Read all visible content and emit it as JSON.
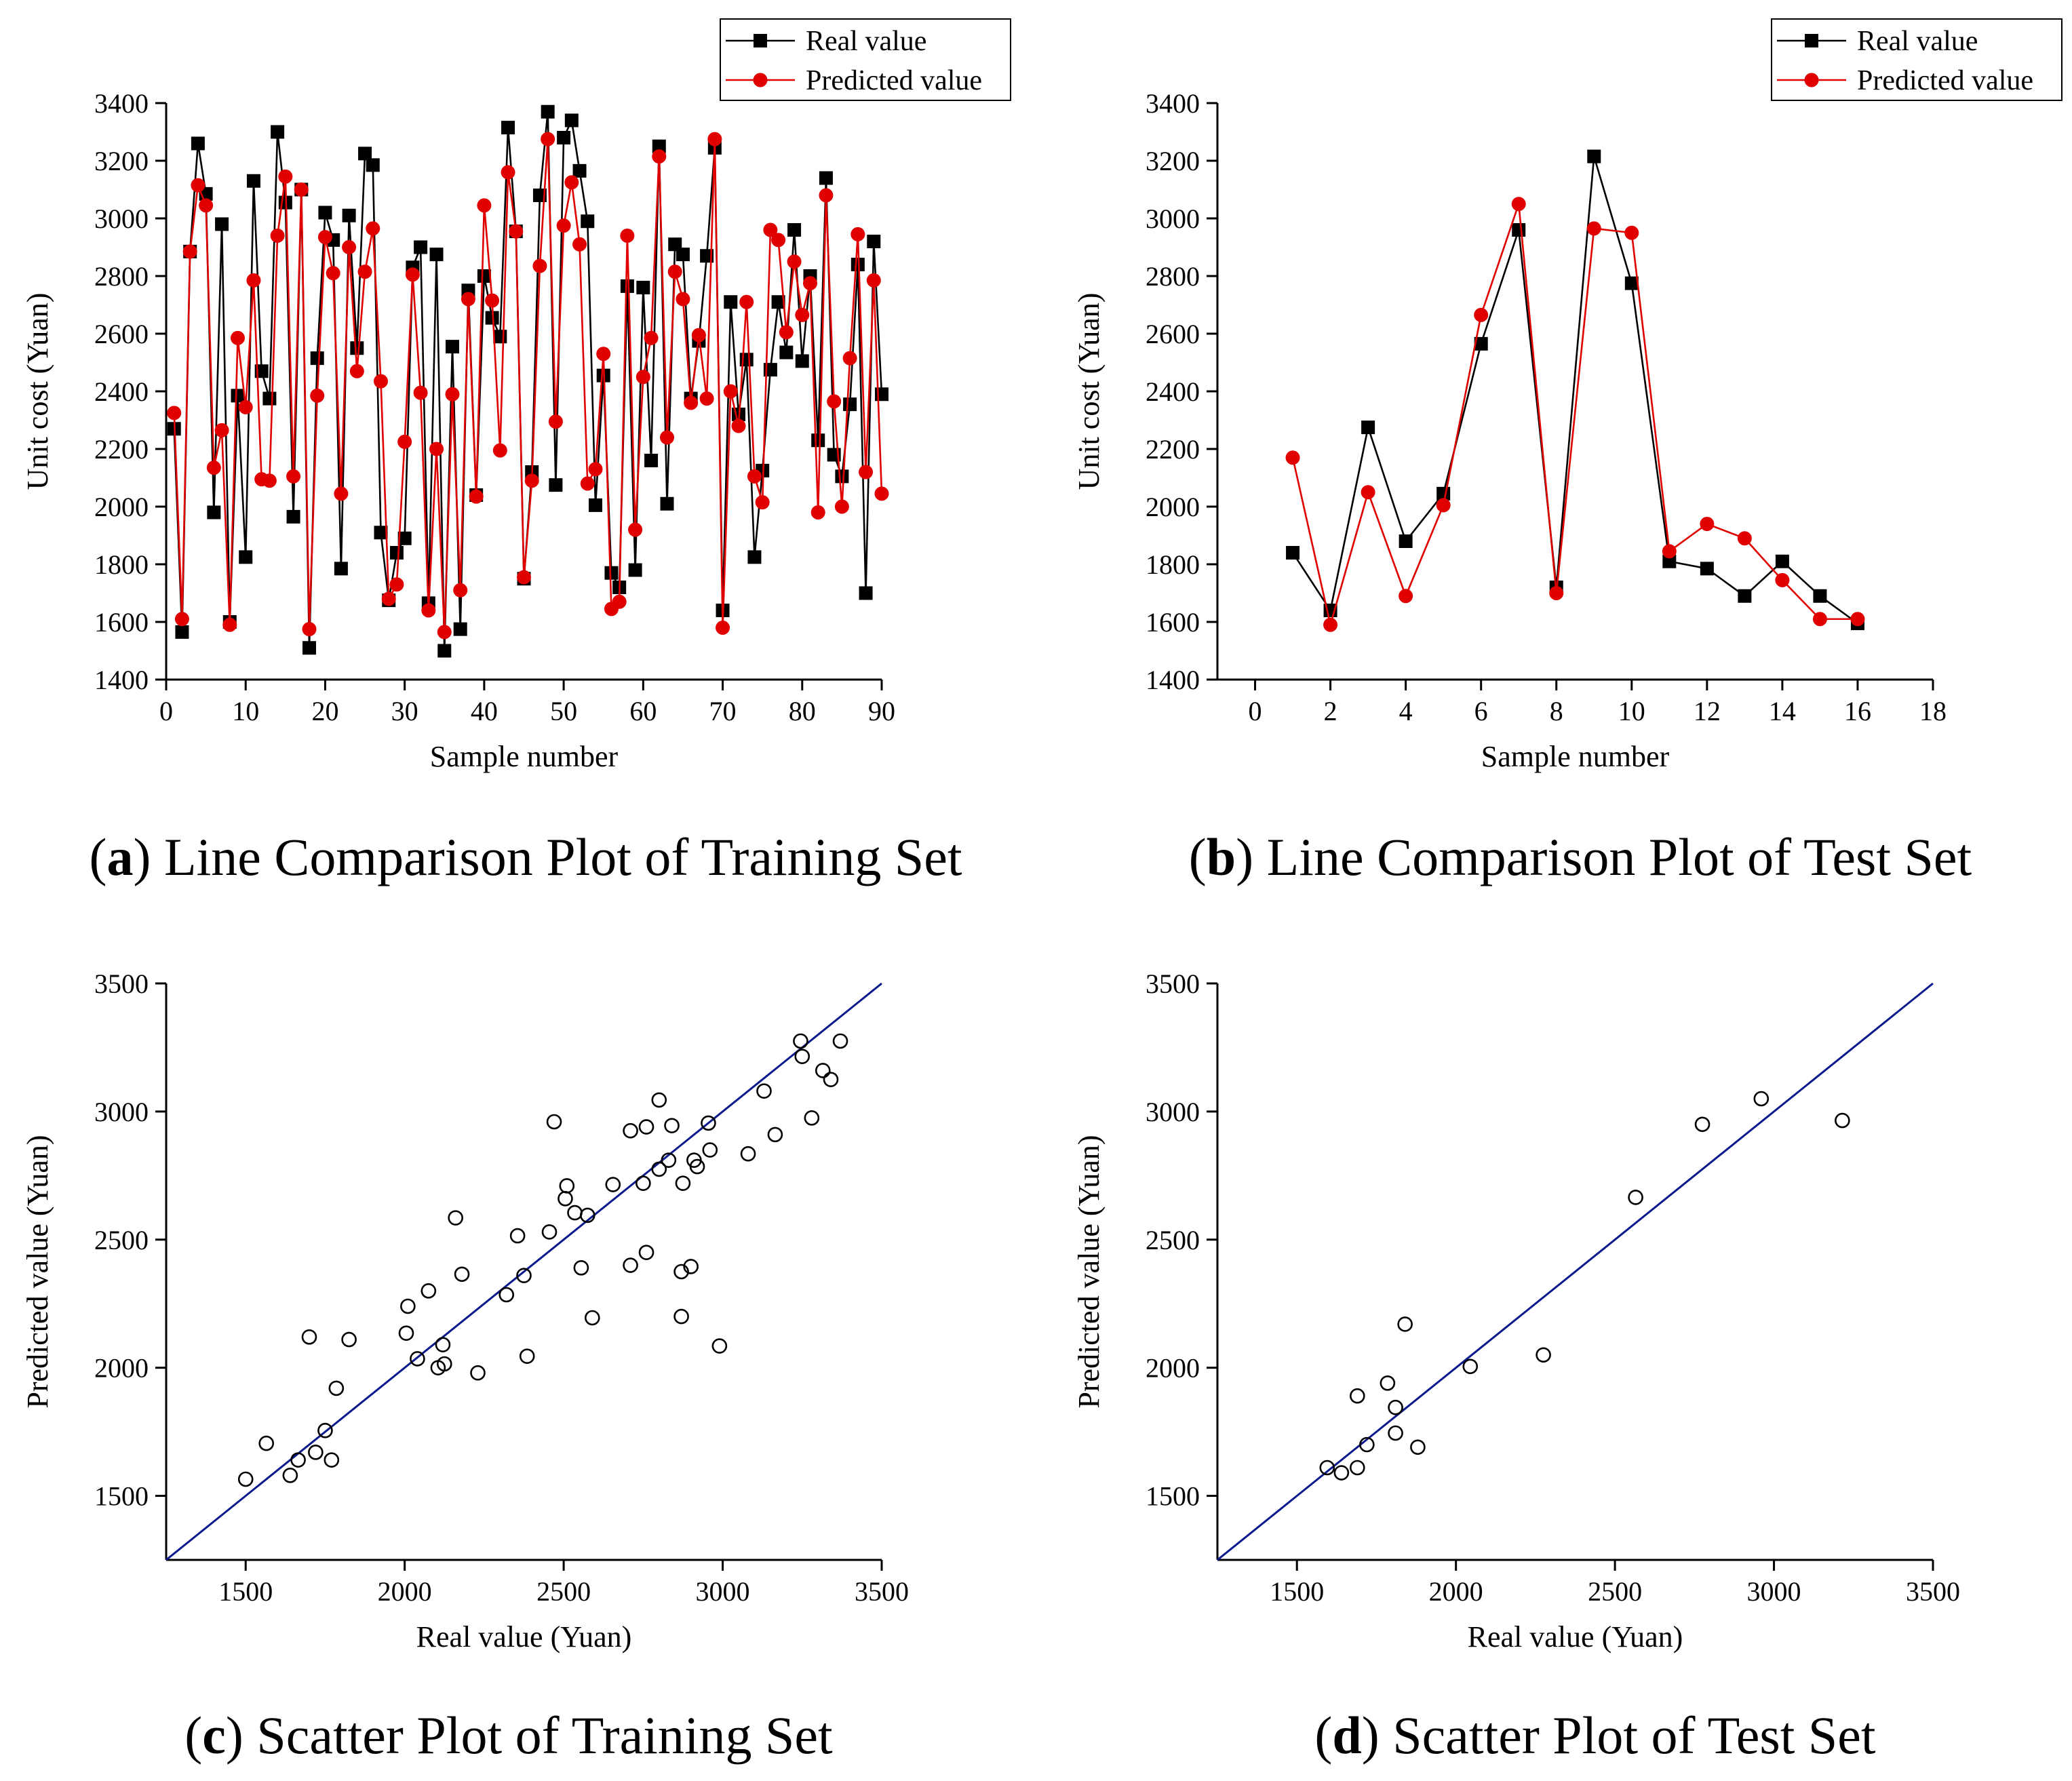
{
  "chart_data": [
    {
      "id": "a",
      "type": "line",
      "caption_letter": "a",
      "caption_text": "Line Comparison Plot of Training Set",
      "xlabel": "Sample number",
      "ylabel": "Unit cost (Yuan)",
      "xlim": [
        0,
        90
      ],
      "ylim": [
        1400,
        3400
      ],
      "xticks": [
        0,
        10,
        20,
        30,
        40,
        50,
        60,
        70,
        80,
        90
      ],
      "yticks": [
        1400,
        1600,
        1800,
        2000,
        2200,
        2400,
        2600,
        2800,
        3000,
        3200,
        3400
      ],
      "legend": [
        "Real value",
        "Predicted value"
      ],
      "legend_position": "top-right",
      "series": [
        {
          "name": "Real value",
          "color": "#000000",
          "marker": "square",
          "x": [
            1,
            2,
            3,
            4,
            5,
            6,
            7,
            8,
            9,
            10,
            11,
            12,
            13,
            14,
            15,
            16,
            17,
            18,
            19,
            20,
            21,
            22,
            23,
            24,
            25,
            26,
            27,
            28,
            29,
            30,
            31,
            32,
            33,
            34,
            35,
            36,
            37,
            38,
            39,
            40,
            41,
            42,
            43,
            44,
            45,
            46,
            47,
            48,
            49,
            50,
            51,
            52,
            53,
            54,
            55,
            56,
            57,
            58,
            59,
            60,
            61,
            62,
            63,
            64,
            65,
            66,
            67,
            68,
            69,
            70,
            71,
            72,
            73,
            74,
            75,
            76,
            77,
            78,
            79,
            80,
            81,
            82,
            83,
            84,
            85,
            86,
            87,
            88,
            89,
            90
          ],
          "values": [
            2270,
            1565,
            2885,
            3260,
            3085,
            1980,
            2980,
            1600,
            2385,
            1825,
            3130,
            2470,
            2375,
            3300,
            3055,
            1965,
            3100,
            1510,
            2515,
            3020,
            2925,
            1785,
            3010,
            2550,
            3225,
            3185,
            1910,
            1675,
            1840,
            1890,
            2830,
            2900,
            1665,
            2875,
            1500,
            2555,
            1575,
            2750,
            2040,
            2800,
            2655,
            2590,
            3315,
            2955,
            1750,
            2120,
            3080,
            3370,
            2075,
            3280,
            3340,
            3165,
            2990,
            2005,
            2455,
            1770,
            1720,
            2765,
            1780,
            2760,
            2160,
            3250,
            2010,
            2910,
            2875,
            2375,
            2575,
            2870,
            3245,
            1640,
            2710,
            2320,
            2510,
            1825,
            2125,
            2475,
            2710,
            2535,
            2960,
            2505,
            2800,
            2230,
            3140,
            2180,
            2105,
            2355,
            2840,
            1700,
            2920,
            2390
          ]
        },
        {
          "name": "Predicted value",
          "color": "#e00000",
          "marker": "circle",
          "x": [
            1,
            2,
            3,
            4,
            5,
            6,
            7,
            8,
            9,
            10,
            11,
            12,
            13,
            14,
            15,
            16,
            17,
            18,
            19,
            20,
            21,
            22,
            23,
            24,
            25,
            26,
            27,
            28,
            29,
            30,
            31,
            32,
            33,
            34,
            35,
            36,
            37,
            38,
            39,
            40,
            41,
            42,
            43,
            44,
            45,
            46,
            47,
            48,
            49,
            50,
            51,
            52,
            53,
            54,
            55,
            56,
            57,
            58,
            59,
            60,
            61,
            62,
            63,
            64,
            65,
            66,
            67,
            68,
            69,
            70,
            71,
            72,
            73,
            74,
            75,
            76,
            77,
            78,
            79,
            80,
            81,
            82,
            83,
            84,
            85,
            86,
            87,
            88,
            89,
            90
          ],
          "values": [
            2325,
            1610,
            2885,
            3115,
            3045,
            2135,
            2265,
            1590,
            2585,
            2345,
            2785,
            2095,
            2090,
            2940,
            3145,
            2105,
            3100,
            1575,
            2385,
            2935,
            2810,
            2045,
            2900,
            2470,
            2815,
            2965,
            2435,
            1680,
            1730,
            2225,
            2805,
            2395,
            1640,
            2200,
            1565,
            2390,
            1710,
            2720,
            2035,
            3045,
            2715,
            2195,
            3160,
            2955,
            1755,
            2090,
            2835,
            3275,
            2295,
            2975,
            3125,
            2910,
            2080,
            2130,
            2530,
            1645,
            1670,
            2940,
            1920,
            2450,
            2585,
            3215,
            2240,
            2815,
            2720,
            2360,
            2595,
            2375,
            3275,
            1580,
            2400,
            2280,
            2710,
            2105,
            2015,
            2960,
            2925,
            2605,
            2850,
            2665,
            2775,
            1980,
            3080,
            2365,
            2000,
            2515,
            2945,
            2120,
            2785,
            2045
          ]
        }
      ]
    },
    {
      "id": "b",
      "type": "line",
      "caption_letter": "b",
      "caption_text": "Line Comparison Plot of Test Set",
      "xlabel": "Sample number",
      "ylabel": "Unit cost (Yuan)",
      "xlim": [
        -1,
        18
      ],
      "ylim": [
        1400,
        3400
      ],
      "xticks": [
        0,
        2,
        4,
        6,
        8,
        10,
        12,
        14,
        16,
        18
      ],
      "yticks": [
        1400,
        1600,
        1800,
        2000,
        2200,
        2400,
        2600,
        2800,
        3000,
        3200,
        3400
      ],
      "legend": [
        "Real value",
        "Predicted value"
      ],
      "legend_position": "top-right",
      "series": [
        {
          "name": "Real value",
          "color": "#000000",
          "marker": "square",
          "x": [
            1,
            2,
            3,
            4,
            5,
            6,
            7,
            8,
            9,
            10,
            11,
            12,
            13,
            14,
            15,
            16
          ],
          "values": [
            1840,
            1640,
            2275,
            1880,
            2045,
            2565,
            2960,
            1720,
            3215,
            2775,
            1810,
            1785,
            1690,
            1810,
            1690,
            1595
          ]
        },
        {
          "name": "Predicted value",
          "color": "#e00000",
          "marker": "circle",
          "x": [
            1,
            2,
            3,
            4,
            5,
            6,
            7,
            8,
            9,
            10,
            11,
            12,
            13,
            14,
            15,
            16
          ],
          "values": [
            2170,
            1590,
            2050,
            1690,
            2005,
            2665,
            3050,
            1700,
            2965,
            2950,
            1845,
            1940,
            1890,
            1745,
            1610,
            1610
          ]
        }
      ]
    },
    {
      "id": "c",
      "type": "scatter",
      "caption_letter": "c",
      "caption_text": "Scatter Plot of Training Set",
      "xlabel": "Real value  (Yuan)",
      "ylabel": "Predicted value  (Yuan)",
      "xlim": [
        1250,
        3500
      ],
      "ylim": [
        1250,
        3500
      ],
      "xticks": [
        1500,
        2000,
        2500,
        3000,
        3500
      ],
      "yticks": [
        1500,
        2000,
        2500,
        3000,
        3500
      ],
      "reference_line": {
        "from": [
          1250,
          1250
        ],
        "to": [
          3500,
          3500
        ],
        "color": "#0a1a8c"
      },
      "points": {
        "x": [
          1500,
          1565,
          1640,
          1665,
          1700,
          1720,
          1750,
          1770,
          1785,
          1825,
          2005,
          2010,
          2040,
          2075,
          2105,
          2120,
          2125,
          2160,
          2180,
          2230,
          2320,
          2355,
          2375,
          2385,
          2455,
          2470,
          2505,
          2510,
          2535,
          2555,
          2575,
          2590,
          2655,
          2710,
          2710,
          2750,
          2760,
          2760,
          2800,
          2800,
          2830,
          2840,
          2870,
          2870,
          2875,
          2900,
          2910,
          2920,
          2955,
          2960,
          2990,
          3080,
          3130,
          3165,
          3245,
          3250,
          3280,
          3315,
          3340,
          3370
        ],
        "y": [
          1565,
          1705,
          1580,
          1640,
          2120,
          1670,
          1755,
          1640,
          1920,
          2110,
          2135,
          2240,
          2035,
          2300,
          2000,
          2090,
          2015,
          2585,
          2365,
          1980,
          2285,
          2515,
          2360,
          2045,
          2530,
          2960,
          2660,
          2710,
          2605,
          2390,
          2595,
          2195,
          2715,
          2400,
          2925,
          2720,
          2450,
          2940,
          3045,
          2775,
          2810,
          2945,
          2200,
          2375,
          2720,
          2395,
          2810,
          2785,
          2955,
          2850,
          2085,
          2835,
          3080,
          2910,
          3275,
          3215,
          2975,
          3160,
          3125,
          3275
        ]
      },
      "marker": "open-circle"
    },
    {
      "id": "d",
      "type": "scatter",
      "caption_letter": "d",
      "caption_text": "Scatter Plot of Test Set",
      "xlabel": "Real value  (Yuan)",
      "ylabel": "Predicted value  (Yuan)",
      "xlim": [
        1250,
        3500
      ],
      "ylim": [
        1250,
        3500
      ],
      "xticks": [
        1500,
        2000,
        2500,
        3000,
        3500
      ],
      "yticks": [
        1500,
        2000,
        2500,
        3000,
        3500
      ],
      "reference_line": {
        "from": [
          1250,
          1250
        ],
        "to": [
          3500,
          3500
        ],
        "color": "#0a1a8c"
      },
      "points": {
        "x": [
          1595,
          1640,
          1690,
          1690,
          1720,
          1785,
          1810,
          1810,
          1840,
          1880,
          2045,
          2275,
          2565,
          2775,
          2960,
          3215
        ],
        "y": [
          1610,
          1590,
          1610,
          1890,
          1700,
          1940,
          1845,
          1745,
          2170,
          1690,
          2005,
          2050,
          2665,
          2950,
          3050,
          2965
        ]
      },
      "marker": "open-circle"
    }
  ]
}
